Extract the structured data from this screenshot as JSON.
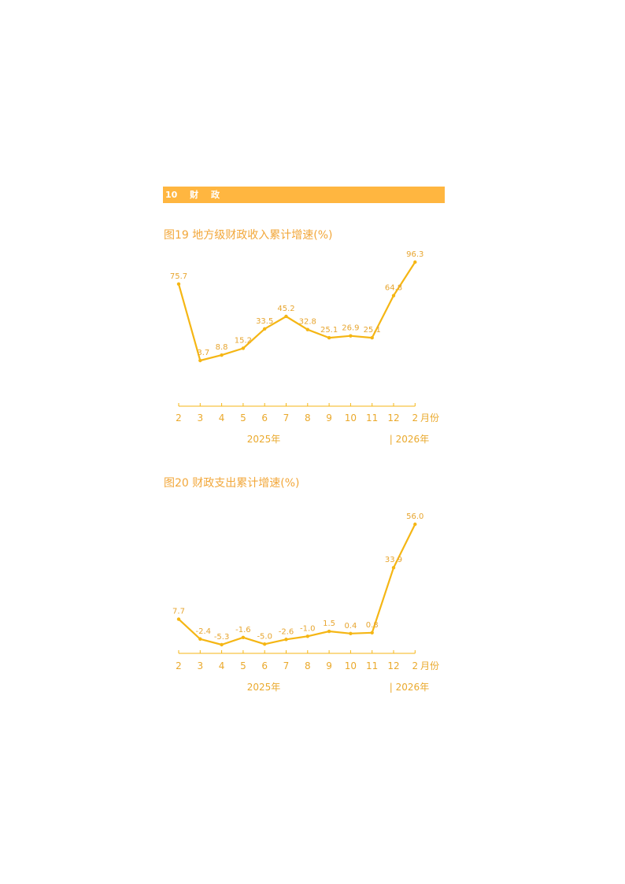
{
  "section": {
    "number": "10",
    "title_a": "财",
    "title_b": "政"
  },
  "chart_data": [
    {
      "type": "line",
      "title": "图19  地方级财政收入累计增速(%)",
      "categories": [
        "2",
        "3",
        "4",
        "5",
        "6",
        "7",
        "8",
        "9",
        "10",
        "11",
        "12",
        "2"
      ],
      "values": [
        75.7,
        3.7,
        8.8,
        15.2,
        33.5,
        45.2,
        32.8,
        25.1,
        26.9,
        25.1,
        64.8,
        96.3
      ],
      "x_unit": "月份",
      "year_labels": [
        "2025年",
        "| 2026年"
      ],
      "grid": false
    },
    {
      "type": "line",
      "title": "图20  财政支出累计增速(%)",
      "categories": [
        "2",
        "3",
        "4",
        "5",
        "6",
        "7",
        "8",
        "9",
        "10",
        "11",
        "12",
        "2"
      ],
      "values": [
        7.7,
        -2.4,
        -5.3,
        -1.6,
        -5.0,
        -2.6,
        -1.0,
        1.5,
        0.4,
        0.8,
        33.9,
        56.0
      ],
      "x_unit": "月份",
      "year_labels": [
        "2025年",
        "| 2026年"
      ],
      "grid": false
    }
  ]
}
